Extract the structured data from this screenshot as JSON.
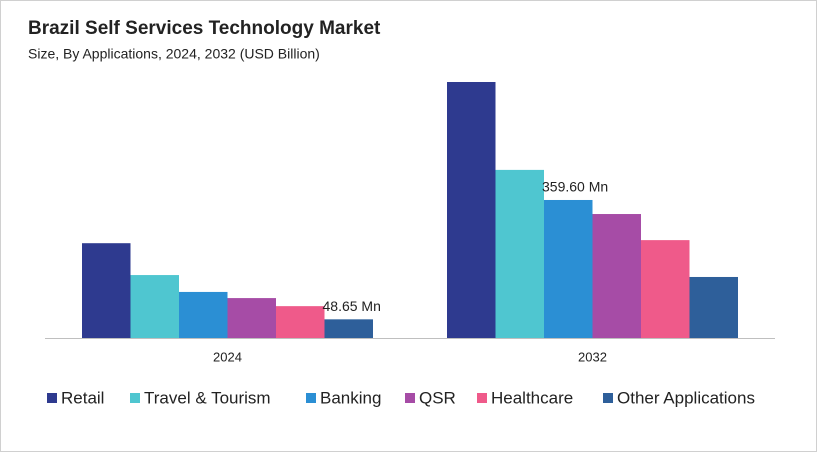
{
  "chart_data": {
    "type": "bar",
    "title": "Brazil Self Services Technology Market",
    "subtitle": "Size, By Applications, 2024, 2032 (USD Billion)",
    "categories": [
      "2024",
      "2032"
    ],
    "series": [
      {
        "name": "Retail",
        "color": "#2e3a8f",
        "values": [
          247,
          667
        ]
      },
      {
        "name": "Travel & Tourism",
        "color": "#4fc6d0",
        "values": [
          164,
          438
        ]
      },
      {
        "name": "Banking",
        "color": "#2b8fd4",
        "values": [
          120,
          359.6
        ],
        "value_labels": [
          null,
          "359.60 Mn"
        ]
      },
      {
        "name": "QSR",
        "color": "#a64ca6",
        "values": [
          104,
          323
        ]
      },
      {
        "name": "Healthcare",
        "color": "#ef5a8a",
        "values": [
          83,
          255
        ]
      },
      {
        "name": "Other Applications",
        "color": "#2e5f9a",
        "values": [
          48.65,
          159
        ],
        "value_labels": [
          "48.65 Mn",
          null
        ]
      }
    ]
  }
}
